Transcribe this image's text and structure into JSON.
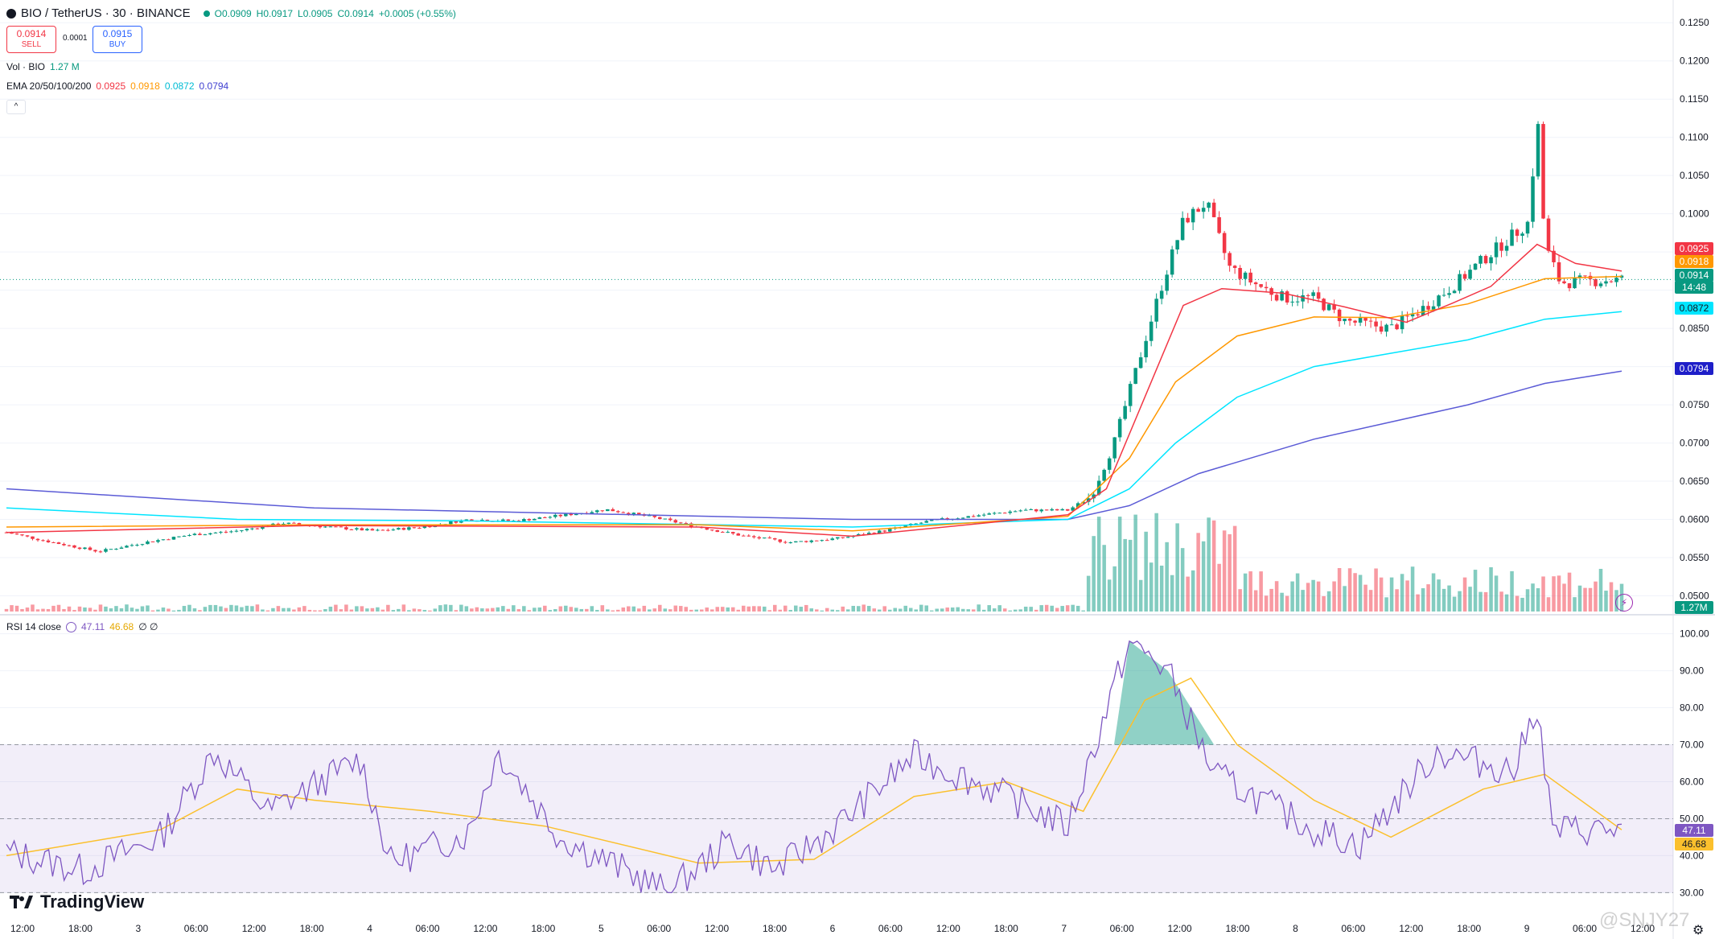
{
  "header": {
    "symbol": "BIO / TetherUS · 30 · BINANCE",
    "ohlc_o": "O0.0909",
    "ohlc_h": "H0.0917",
    "ohlc_l": "L0.0905",
    "ohlc_c": "C0.0914",
    "ohlc_change": "+0.0005 (+0.55%)",
    "sell_price": "0.0914",
    "sell_label": "SELL",
    "spread": "0.0001",
    "buy_price": "0.0915",
    "buy_label": "BUY"
  },
  "indicators": {
    "volume_label": "Vol · BIO",
    "volume_value": "1.27 M",
    "ema_label": "EMA 20/50/100/200",
    "ema20": "0.0925",
    "ema50": "0.0918",
    "ema100": "0.0872",
    "ema200": "0.0794",
    "rsi_label": "RSI 14 close",
    "rsi_value": "47.11",
    "rsi_ma_value": "46.68",
    "rsi_extra": "∅ ∅"
  },
  "price_tags": {
    "ema20": "0.0925",
    "ema50": "0.0918",
    "last_price": "0.0914",
    "countdown": "14:48",
    "ema100": "0.0872",
    "ema200": "0.0794",
    "volume": "1.27M",
    "rsi": "47.11",
    "rsi_ma": "46.68"
  },
  "colors": {
    "up": "#089981",
    "down": "#f23645",
    "ema20": "#f23645",
    "ema50": "#ff9800",
    "ema100": "#00e5ff",
    "ema200": "#5b5bd6",
    "rsi": "#7e57c2",
    "rsi_ma": "#fbc02d"
  },
  "price_axis": [
    "0.1250",
    "0.1200",
    "0.1150",
    "0.1100",
    "0.1050",
    "0.1000",
    "0.0950",
    "0.0900",
    "0.0850",
    "0.0800",
    "0.0750",
    "0.0700",
    "0.0650",
    "0.0600",
    "0.0550",
    "0.0500"
  ],
  "rsi_axis": [
    "100.00",
    "90.00",
    "80.00",
    "70.00",
    "60.00",
    "50.00",
    "40.00",
    "30.00"
  ],
  "time_axis": [
    "12:00",
    "18:00",
    "3",
    "06:00",
    "12:00",
    "18:00",
    "4",
    "06:00",
    "12:00",
    "18:00",
    "5",
    "06:00",
    "12:00",
    "18:00",
    "6",
    "06:00",
    "12:00",
    "18:00",
    "7",
    "06:00",
    "12:00",
    "18:00",
    "8",
    "06:00",
    "12:00",
    "18:00",
    "9",
    "06:00",
    "12:00"
  ],
  "branding": {
    "logo": "TradingView",
    "watermark": "@SNJY27"
  },
  "chart_data": {
    "type": "candlestick",
    "title": "BIO / TetherUS · 30 · BINANCE",
    "ylim": [
      0.049,
      0.1265
    ],
    "rsi_ylim": [
      29,
      101
    ],
    "rsi_band": [
      30,
      70
    ],
    "x_range_hours": [
      0,
      154
    ],
    "candles_anchor_close": [
      [
        0,
        0.0583
      ],
      [
        6,
        0.057
      ],
      [
        12,
        0.0558
      ],
      [
        18,
        0.057
      ],
      [
        24,
        0.058
      ],
      [
        30,
        0.0585
      ],
      [
        36,
        0.0595
      ],
      [
        42,
        0.059
      ],
      [
        48,
        0.0585
      ],
      [
        54,
        0.059
      ],
      [
        60,
        0.06
      ],
      [
        66,
        0.0598
      ],
      [
        72,
        0.0605
      ],
      [
        78,
        0.0613
      ],
      [
        84,
        0.0603
      ],
      [
        90,
        0.059
      ],
      [
        96,
        0.0578
      ],
      [
        102,
        0.057
      ],
      [
        108,
        0.0575
      ],
      [
        114,
        0.0585
      ],
      [
        120,
        0.0598
      ],
      [
        126,
        0.0605
      ],
      [
        132,
        0.0612
      ],
      [
        138,
        0.0612
      ],
      [
        141,
        0.063
      ],
      [
        144,
        0.07
      ],
      [
        147,
        0.08
      ],
      [
        150,
        0.09
      ],
      [
        153,
        0.099
      ],
      [
        156,
        0.1015
      ],
      [
        159,
        0.093
      ],
      [
        162,
        0.091
      ],
      [
        166,
        0.089
      ],
      [
        170,
        0.089
      ],
      [
        174,
        0.086
      ],
      [
        180,
        0.085
      ],
      [
        184,
        0.0875
      ],
      [
        188,
        0.0905
      ],
      [
        192,
        0.094
      ],
      [
        195,
        0.0965
      ],
      [
        198,
        0.099
      ],
      [
        199,
        0.1135
      ],
      [
        200,
        0.096
      ],
      [
        202,
        0.091
      ],
      [
        206,
        0.0912
      ],
      [
        210,
        0.0914
      ]
    ],
    "ema": {
      "ema20": [
        [
          0,
          0.0583
        ],
        [
          40,
          0.0592
        ],
        [
          90,
          0.059
        ],
        [
          110,
          0.0578
        ],
        [
          138,
          0.0606
        ],
        [
          143,
          0.064
        ],
        [
          148,
          0.076
        ],
        [
          153,
          0.088
        ],
        [
          158,
          0.0902
        ],
        [
          166,
          0.0896
        ],
        [
          174,
          0.0878
        ],
        [
          182,
          0.0858
        ],
        [
          188,
          0.0883
        ],
        [
          193,
          0.0905
        ],
        [
          199,
          0.096
        ],
        [
          204,
          0.0935
        ],
        [
          210,
          0.0925
        ]
      ],
      "ema50": [
        [
          0,
          0.059
        ],
        [
          40,
          0.0593
        ],
        [
          90,
          0.0593
        ],
        [
          110,
          0.0585
        ],
        [
          138,
          0.0604
        ],
        [
          146,
          0.068
        ],
        [
          152,
          0.078
        ],
        [
          160,
          0.084
        ],
        [
          170,
          0.0865
        ],
        [
          180,
          0.0864
        ],
        [
          190,
          0.0882
        ],
        [
          200,
          0.0915
        ],
        [
          210,
          0.0918
        ]
      ],
      "ema100": [
        [
          0,
          0.0615
        ],
        [
          30,
          0.06
        ],
        [
          60,
          0.0598
        ],
        [
          110,
          0.059
        ],
        [
          138,
          0.06
        ],
        [
          146,
          0.064
        ],
        [
          152,
          0.07
        ],
        [
          160,
          0.076
        ],
        [
          170,
          0.08
        ],
        [
          190,
          0.0835
        ],
        [
          200,
          0.0862
        ],
        [
          210,
          0.0872
        ]
      ],
      "ema200": [
        [
          0,
          0.064
        ],
        [
          40,
          0.0615
        ],
        [
          110,
          0.06
        ],
        [
          138,
          0.06
        ],
        [
          146,
          0.0618
        ],
        [
          155,
          0.066
        ],
        [
          170,
          0.0705
        ],
        [
          190,
          0.075
        ],
        [
          200,
          0.0778
        ],
        [
          210,
          0.0794
        ]
      ]
    },
    "rsi": [
      [
        0,
        41
      ],
      [
        10,
        36
      ],
      [
        20,
        45
      ],
      [
        27,
        68
      ],
      [
        34,
        52
      ],
      [
        46,
        66
      ],
      [
        50,
        38
      ],
      [
        60,
        46
      ],
      [
        64,
        68
      ],
      [
        72,
        45
      ],
      [
        86,
        30
      ],
      [
        94,
        44
      ],
      [
        100,
        36
      ],
      [
        108,
        48
      ],
      [
        118,
        67
      ],
      [
        128,
        58
      ],
      [
        138,
        48
      ],
      [
        146,
        98
      ],
      [
        151,
        90
      ],
      [
        157,
        62
      ],
      [
        170,
        47
      ],
      [
        176,
        43
      ],
      [
        186,
        68
      ],
      [
        196,
        63
      ],
      [
        199,
        81
      ],
      [
        201,
        47
      ],
      [
        210,
        47
      ]
    ],
    "rsi_ma": [
      [
        0,
        40
      ],
      [
        20,
        47
      ],
      [
        30,
        58
      ],
      [
        40,
        55
      ],
      [
        55,
        52
      ],
      [
        70,
        48
      ],
      [
        90,
        38
      ],
      [
        105,
        39
      ],
      [
        118,
        56
      ],
      [
        130,
        60
      ],
      [
        140,
        52
      ],
      [
        148,
        82
      ],
      [
        154,
        88
      ],
      [
        160,
        70
      ],
      [
        170,
        55
      ],
      [
        180,
        45
      ],
      [
        192,
        58
      ],
      [
        200,
        62
      ],
      [
        210,
        47
      ]
    ]
  }
}
